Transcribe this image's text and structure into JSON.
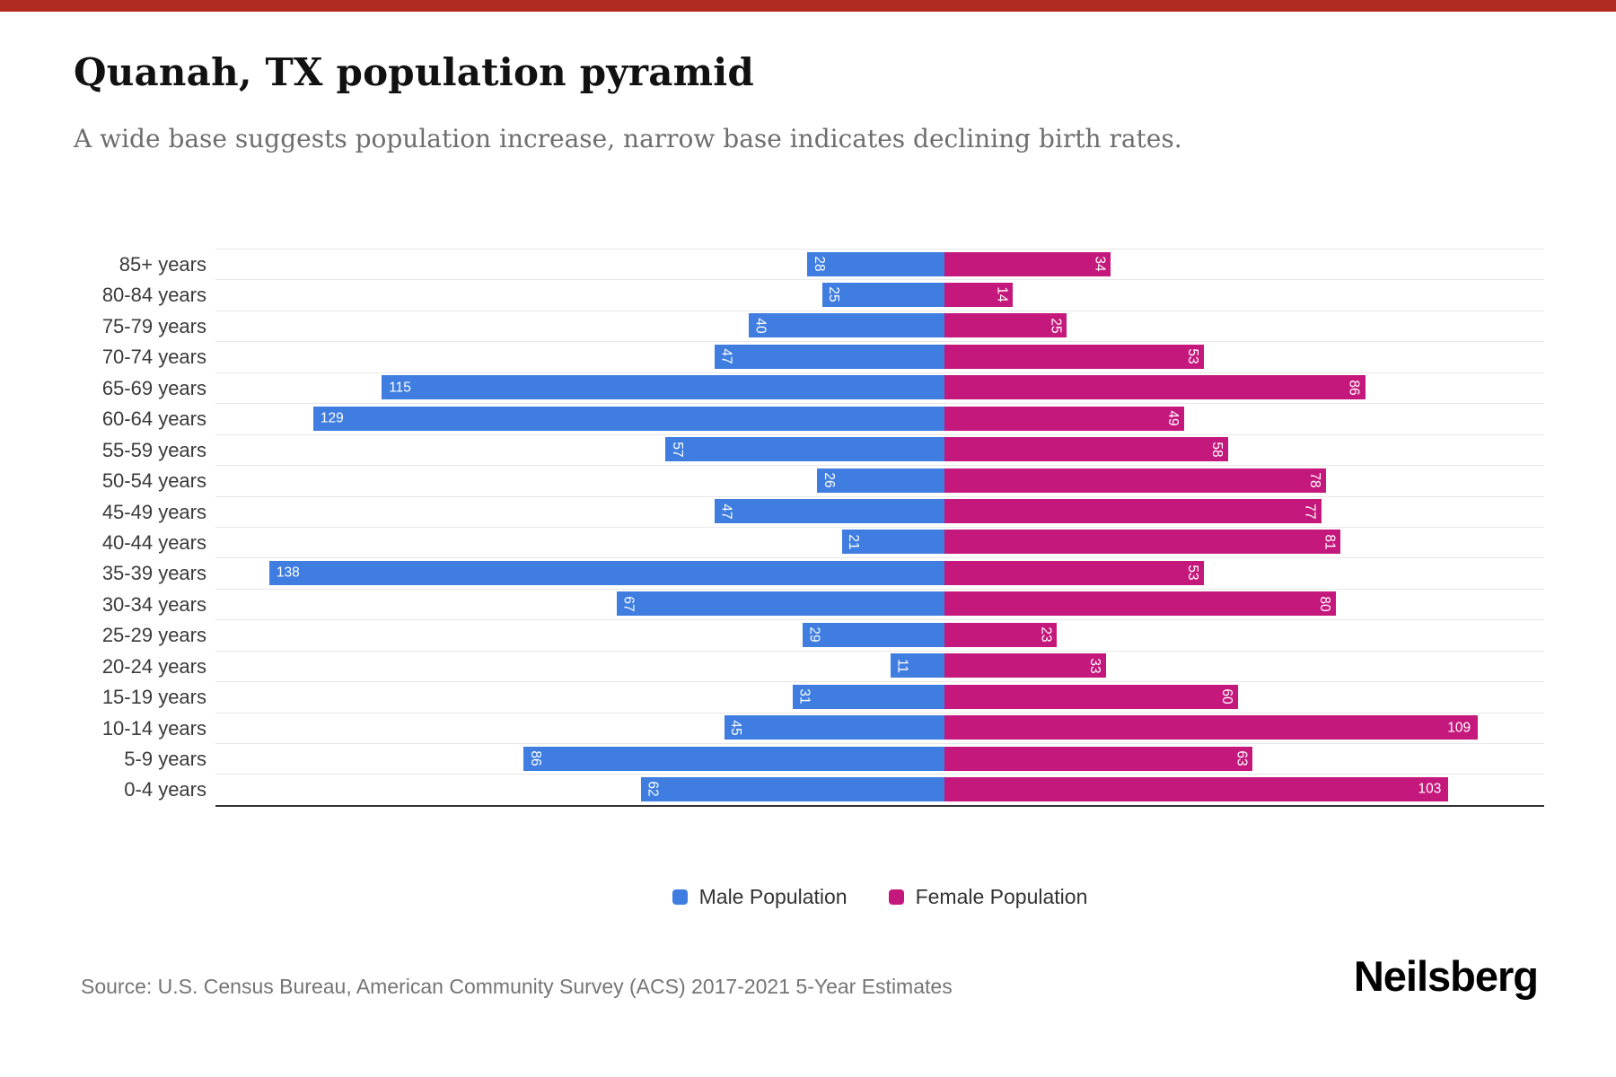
{
  "page": {
    "title": "Quanah, TX population pyramid",
    "subtitle": "A wide base suggests population increase, narrow base indicates declining birth rates.",
    "source": "Source: U.S. Census Bureau, American Community Survey (ACS) 2017-2021 5-Year Estimates",
    "brand": "Neilsberg"
  },
  "chart_data": {
    "type": "bar",
    "variant": "population_pyramid",
    "orientation": "horizontal",
    "title": "Quanah, TX population pyramid",
    "categories": [
      "85+ years",
      "80-84 years",
      "75-79 years",
      "70-74 years",
      "65-69 years",
      "60-64 years",
      "55-59 years",
      "50-54 years",
      "45-49 years",
      "40-44 years",
      "35-39 years",
      "30-34 years",
      "25-29 years",
      "20-24 years",
      "15-19 years",
      "10-14 years",
      "5-9 years",
      "0-4 years"
    ],
    "series": [
      {
        "name": "Male Population",
        "side": "left",
        "color": "#3F7DE0",
        "values": [
          28,
          25,
          40,
          47,
          115,
          129,
          57,
          26,
          47,
          21,
          138,
          67,
          29,
          11,
          31,
          45,
          86,
          62
        ]
      },
      {
        "name": "Female Population",
        "side": "right",
        "color": "#C5187D",
        "values": [
          34,
          14,
          25,
          53,
          86,
          49,
          58,
          78,
          77,
          81,
          53,
          80,
          23,
          33,
          60,
          109,
          63,
          103
        ]
      }
    ],
    "value_labels": "white, inside outer end of bar; rotated 90deg for 2-digit values, horizontal for 3-digit values",
    "axis": {
      "left_max": 149,
      "right_max": 122.5,
      "shared_unit_scale": true,
      "ticks_hidden": true
    },
    "grid": true,
    "legend_position": "bottom-center"
  },
  "colors": {
    "male": "#3F7DE0",
    "female": "#C5187D",
    "accent_bar": "#B02B20",
    "title_text": "#111111",
    "subtitle_text": "#6E6E6E",
    "axis_label_text": "#3A3A3A",
    "gridline": "#E7E7E7",
    "axis_line": "#333333",
    "legend_text": "#333333",
    "source_text": "#757575",
    "value_label_text": "#FFFFFF"
  }
}
